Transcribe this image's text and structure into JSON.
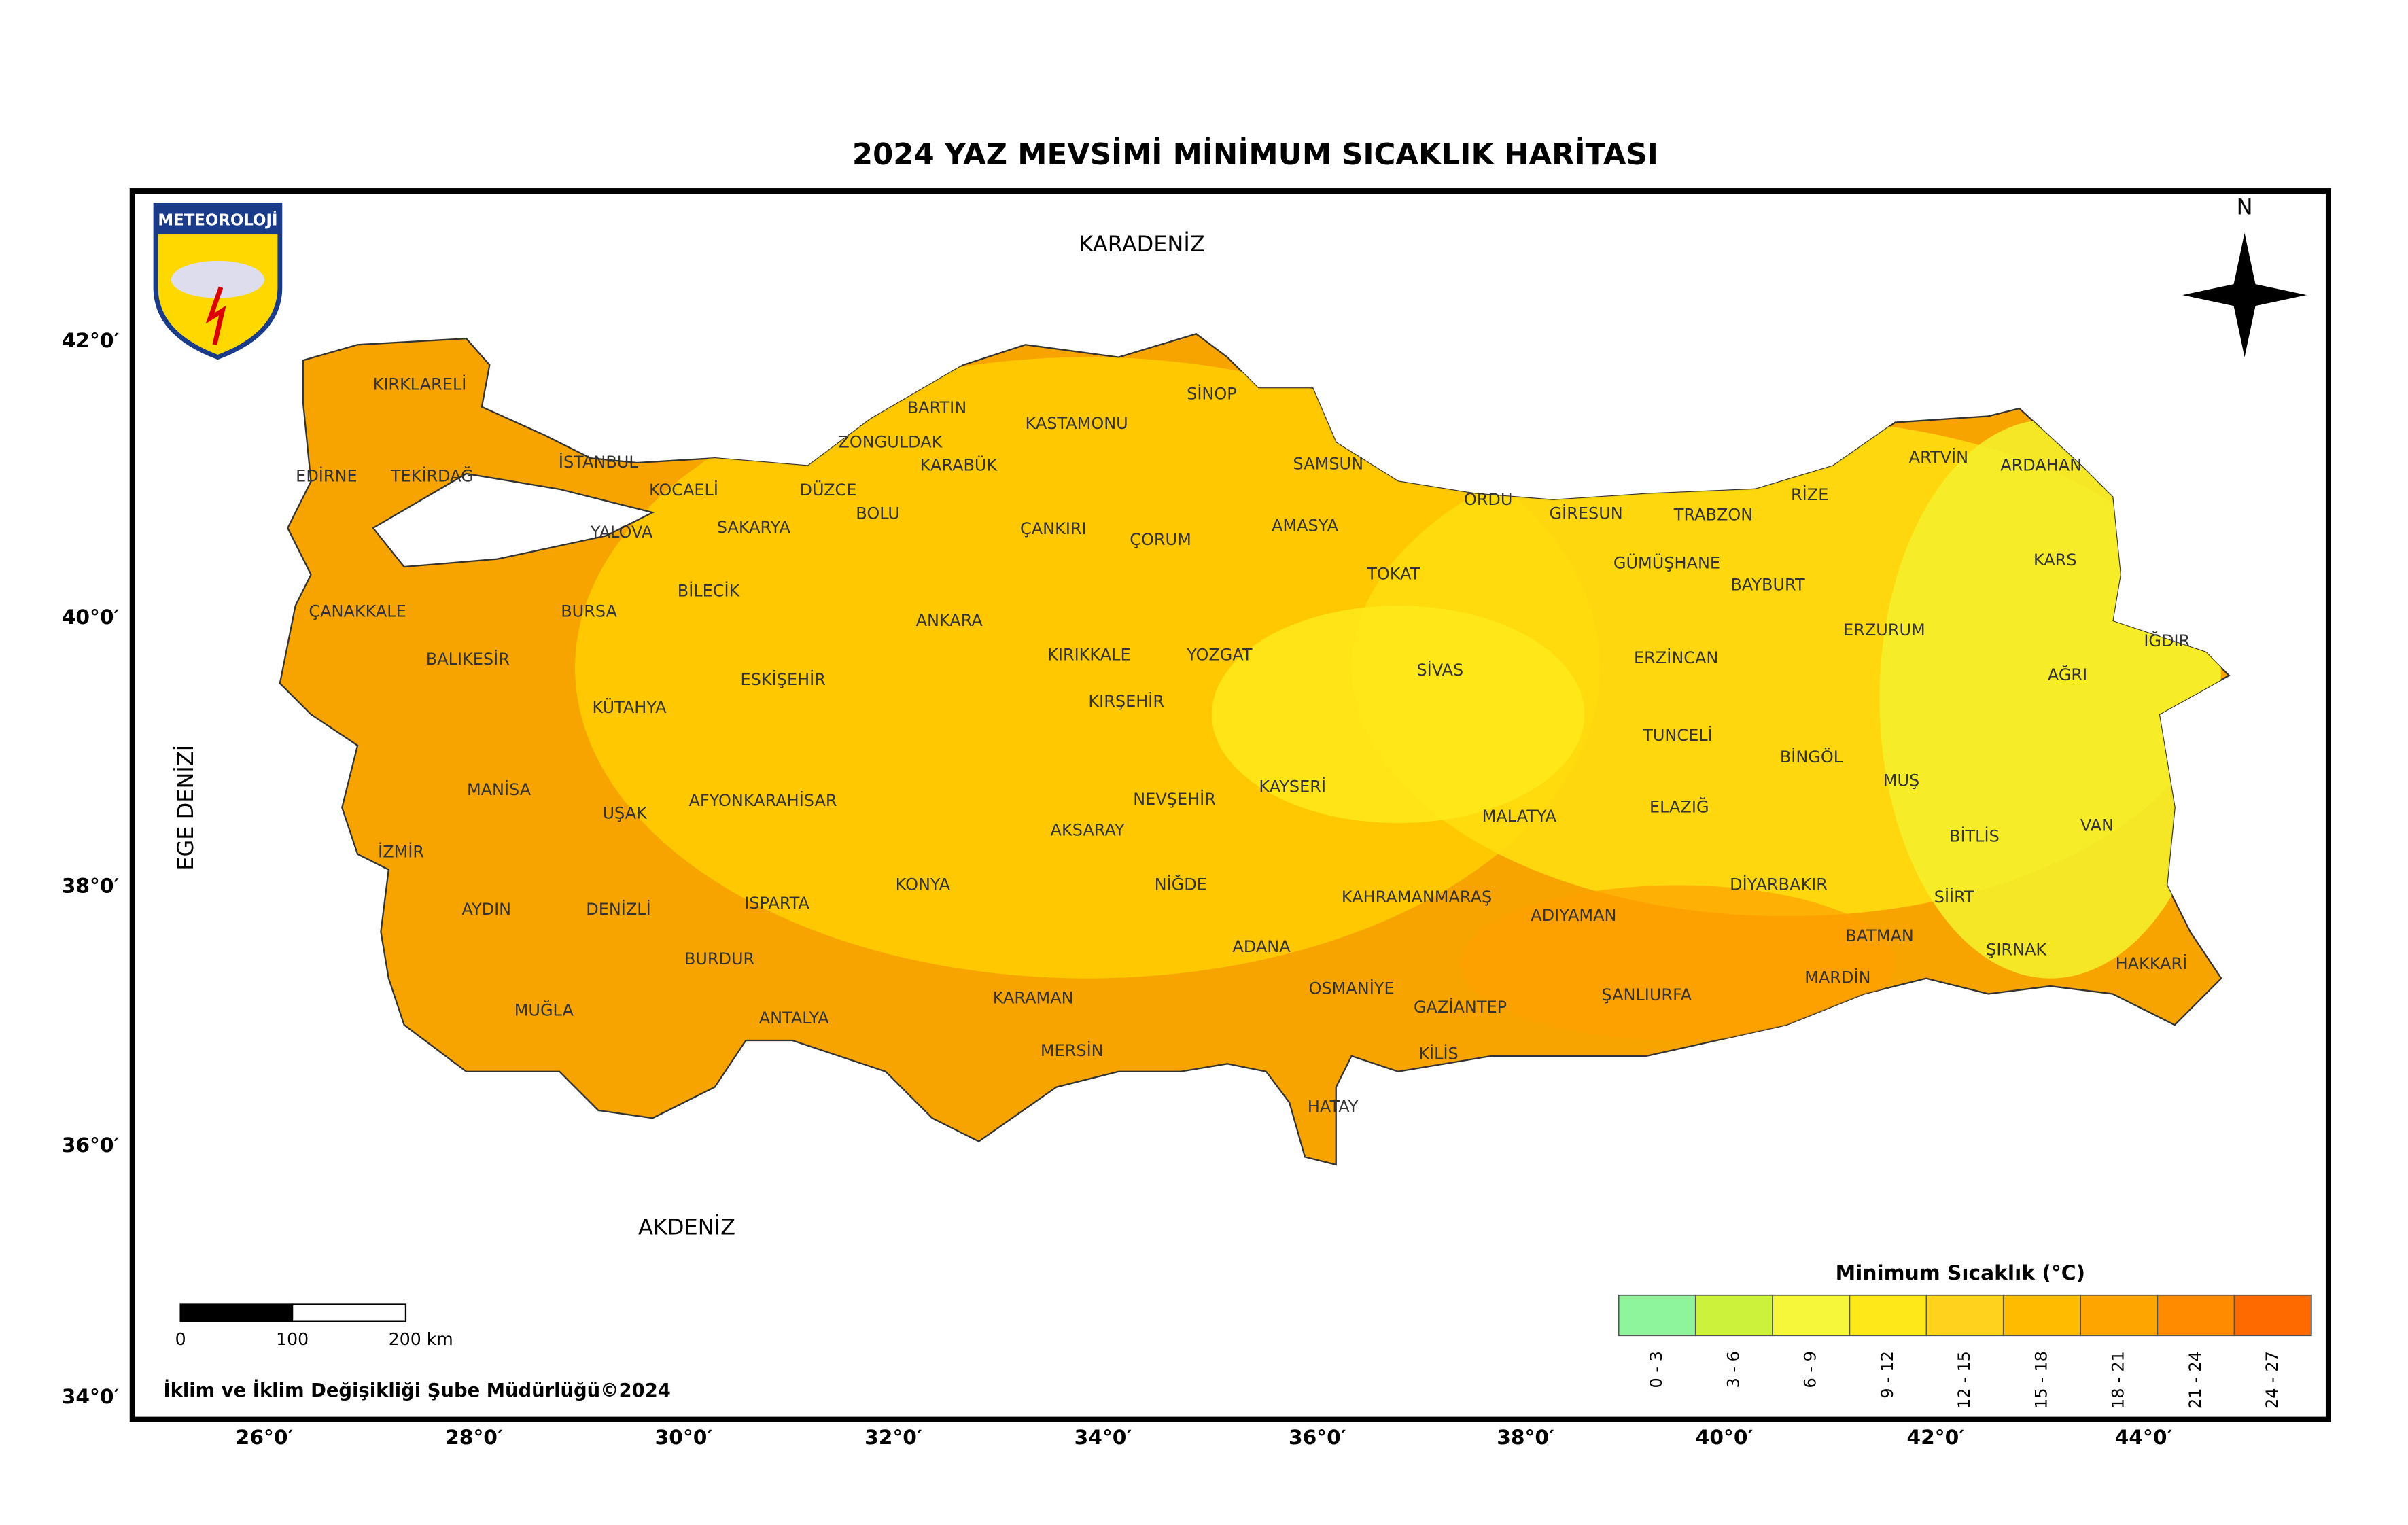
{
  "header": {
    "title": "2024 YAZ MEVSİMİ MİNİMUM SICAKLIK HARİTASI"
  },
  "logo": {
    "text": "METEOROLOJİ"
  },
  "north_label": "N",
  "sea_labels": [
    "KARADENİZ",
    "AKDENİZ",
    "EGE DENİZİ"
  ],
  "provinces": [
    "KIRKLARELİ",
    "EDİRNE",
    "TEKİRDAĞ",
    "İSTANBUL",
    "KOCAELİ",
    "YALOVA",
    "SAKARYA",
    "DÜZCE",
    "BOLU",
    "ZONGULDAK",
    "BARTIN",
    "KARABÜK",
    "KASTAMONU",
    "SİNOP",
    "SAMSUN",
    "ÇANKIRI",
    "ÇORUM",
    "AMASYA",
    "ORDU",
    "GİRESUN",
    "TRABZON",
    "RİZE",
    "ARTVİN",
    "ARDAHAN",
    "KARS",
    "IĞDIR",
    "AĞRI",
    "ERZURUM",
    "BAYBURT",
    "GÜMÜŞHANE",
    "ERZİNCAN",
    "TOKAT",
    "SİVAS",
    "YOZGAT",
    "KIRIKKALE",
    "KIRŞEHİR",
    "ANKARA",
    "ÇANAKKALE",
    "BİLECİK",
    "BURSA",
    "BALIKESİR",
    "KÜTAHYA",
    "ESKİŞEHİR",
    "MANİSA",
    "UŞAK",
    "AFYONKARAHİSAR",
    "İZMİR",
    "AYDIN",
    "DENİZLİ",
    "ISPARTA",
    "BURDUR",
    "MUĞLA",
    "ANTALYA",
    "KONYA",
    "AKSARAY",
    "NEVŞEHİR",
    "NİĞDE",
    "KARAMAN",
    "MERSİN",
    "KAYSERİ",
    "KAHRAMANMARAŞ",
    "ADANA",
    "OSMANİYE",
    "HATAY",
    "GAZİANTEP",
    "KİLİS",
    "ADIYAMAN",
    "ŞANLIURFA",
    "MALATYA",
    "ELAZIĞ",
    "TUNCELİ",
    "BİNGÖL",
    "MUŞ",
    "BİTLİS",
    "VAN",
    "DİYARBAKIR",
    "SİİRT",
    "BATMAN",
    "ŞIRNAK",
    "MARDİN",
    "HAKKARİ"
  ],
  "latitude_labels": [
    "42°0′",
    "40°0′",
    "38°0′",
    "36°0′",
    "34°0′"
  ],
  "longitude_labels": [
    "26°0′",
    "28°0′",
    "30°0′",
    "32°0′",
    "34°0′",
    "36°0′",
    "38°0′",
    "40°0′",
    "42°0′",
    "44°0′"
  ],
  "legend": {
    "title": "Minimum Sıcaklık (°C)",
    "classes": [
      {
        "label": "0 - 3",
        "color": "#8ef59c"
      },
      {
        "label": "3 - 6",
        "color": "#cdf23c"
      },
      {
        "label": "6 - 9",
        "color": "#f6f63a"
      },
      {
        "label": "9 - 12",
        "color": "#ffe81a"
      },
      {
        "label": "12 - 15",
        "color": "#ffd21e"
      },
      {
        "label": "15 - 18",
        "color": "#ffbb00"
      },
      {
        "label": "18 - 21",
        "color": "#ffa500"
      },
      {
        "label": "21 - 24",
        "color": "#ff8c00"
      },
      {
        "label": "24 - 27",
        "color": "#ff6a00"
      }
    ]
  },
  "scale_bar": {
    "labels": [
      "0",
      "100",
      "200 km"
    ]
  },
  "credit": "İklim ve İklim Değişikliği Şube Müdürlüğü©2024"
}
